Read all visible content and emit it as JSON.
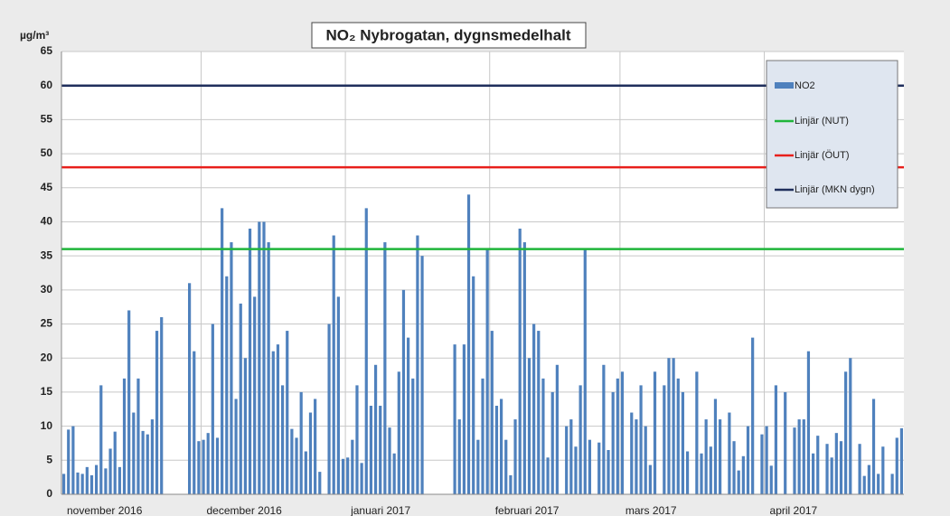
{
  "chart_data": {
    "type": "bar",
    "title": "NO₂ Nybrogatan,  dygnsmedelhalt",
    "y_label": "µg/m³",
    "categories": [
      "november 2016",
      null,
      null,
      null,
      null,
      null,
      null,
      null,
      null,
      null,
      null,
      null,
      null,
      null,
      null,
      null,
      null,
      null,
      null,
      null,
      null,
      null,
      null,
      null,
      null,
      null,
      null,
      null,
      null,
      null,
      "december 2016",
      null,
      null,
      null,
      null,
      null,
      null,
      null,
      null,
      null,
      null,
      null,
      null,
      null,
      null,
      null,
      null,
      null,
      null,
      null,
      null,
      null,
      null,
      null,
      null,
      null,
      null,
      null,
      null,
      null,
      null,
      "januari 2017",
      null,
      null,
      null,
      null,
      null,
      null,
      null,
      null,
      null,
      null,
      null,
      null,
      null,
      null,
      null,
      null,
      null,
      null,
      null,
      null,
      null,
      null,
      null,
      null,
      null,
      null,
      null,
      null,
      null,
      null,
      "februari 2017",
      null,
      null,
      null,
      null,
      null,
      null,
      null,
      null,
      null,
      null,
      null,
      null,
      null,
      null,
      null,
      null,
      null,
      null,
      null,
      null,
      null,
      null,
      null,
      null,
      null,
      null,
      null,
      "mars 2017",
      null,
      null,
      null,
      null,
      null,
      null,
      null,
      null,
      null,
      null,
      null,
      null,
      null,
      null,
      null,
      null,
      null,
      null,
      null,
      null,
      null,
      null,
      null,
      null,
      null,
      null,
      null,
      null,
      null,
      null,
      "april 2017",
      null,
      null,
      null,
      null,
      null,
      null,
      null,
      null,
      null,
      null,
      null,
      null,
      null,
      null,
      null,
      null,
      null,
      null,
      null,
      null,
      null,
      null,
      null,
      null,
      null,
      null,
      null,
      null,
      null
    ],
    "series": [
      {
        "name": "NO2",
        "color": "#4f81bd",
        "values": [
          3,
          9.5,
          10,
          3.2,
          3,
          4,
          2.8,
          4.3,
          16,
          3.8,
          6.7,
          9.2,
          4,
          17,
          27,
          12,
          17,
          9.3,
          8.8,
          11,
          24,
          26,
          null,
          null,
          null,
          null,
          null,
          31,
          21,
          7.8,
          8,
          9,
          25,
          8.3,
          42,
          32,
          37,
          14,
          28,
          20,
          39,
          29,
          40,
          40,
          37,
          21,
          22,
          16,
          24,
          9.6,
          8.3,
          15,
          6.3,
          12,
          14,
          3.3,
          null,
          25,
          38,
          29,
          5.2,
          5.4,
          8,
          16,
          4.6,
          42,
          13,
          19,
          13,
          37,
          9.8,
          6,
          18,
          30,
          23,
          17,
          38,
          35,
          null,
          null,
          null,
          null,
          null,
          null,
          22,
          11,
          22,
          44,
          32,
          8,
          17,
          36,
          24,
          13,
          14,
          8,
          2.8,
          11,
          39,
          37,
          20,
          25,
          24,
          17,
          5.4,
          15,
          19,
          null,
          10,
          11,
          7,
          16,
          36,
          8,
          null,
          7.6,
          19,
          6.5,
          15,
          17,
          18,
          null,
          12,
          11,
          16,
          10,
          4.3,
          18,
          null,
          16,
          20,
          20,
          17,
          15,
          6.3,
          null,
          18,
          6,
          11,
          7,
          14,
          11,
          null,
          12,
          7.8,
          3.5,
          5.6,
          10,
          23,
          null,
          8.8,
          10,
          4.2,
          16,
          null,
          15,
          null,
          9.8,
          11,
          11,
          21,
          6,
          8.6,
          null,
          7.4,
          5.4,
          9,
          7.8,
          18,
          20,
          null,
          7.4,
          2.7,
          4.3,
          14,
          3,
          7,
          null,
          3,
          8.3,
          9.7
        ]
      }
    ],
    "reference_lines": [
      {
        "name": "Linjär (NUT)",
        "value": 36,
        "color": "#1fb53a"
      },
      {
        "name": "Linjär (ÖUT)",
        "value": 48,
        "color": "#e8201c"
      },
      {
        "name": "Linjär (MKN dygn)",
        "value": 60,
        "color": "#1f2f5c"
      }
    ],
    "ylim": [
      0,
      65
    ],
    "yticks": [
      0,
      5,
      10,
      15,
      20,
      25,
      30,
      35,
      40,
      45,
      50,
      55,
      60,
      65
    ],
    "grid": true
  }
}
